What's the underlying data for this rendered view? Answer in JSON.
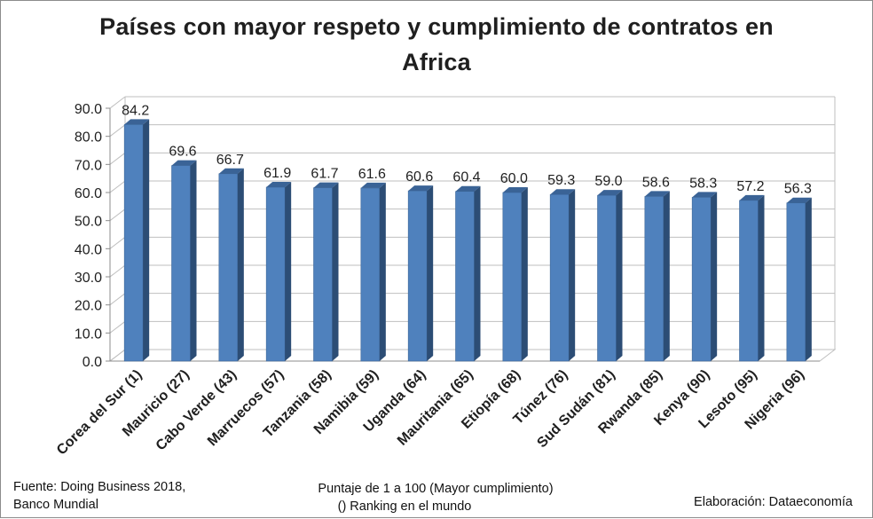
{
  "chart_data": {
    "type": "bar",
    "title": "Países con mayor respeto y cumplimiento de contratos en Africa",
    "title_lines": [
      "Países con mayor respeto y cumplimiento de contratos en",
      "Africa"
    ],
    "categories": [
      "Corea del Sur (1)",
      "Mauricio (27)",
      "Cabo Verde (43)",
      "Marruecos (57)",
      "Tanzania (58)",
      "Namibia (59)",
      "Uganda (64)",
      "Mauritania (65)",
      "Etiopía (68)",
      "Túnez (76)",
      "Sud Sudán (81)",
      "Rwanda (85)",
      "Kenya (90)",
      "Lesoto (95)",
      "Nigeria (96)"
    ],
    "values": [
      84.2,
      69.6,
      66.7,
      61.9,
      61.7,
      61.6,
      60.6,
      60.4,
      60.0,
      59.3,
      59.0,
      58.6,
      58.3,
      57.2,
      56.3
    ],
    "value_labels": [
      "84.2",
      "69.6",
      "66.7",
      "61.9",
      "61.7",
      "61.6",
      "60.6",
      "60.4",
      "60.0",
      "59.3",
      "59.0",
      "58.6",
      "58.3",
      "57.2",
      "56.3"
    ],
    "ylim": [
      0,
      90
    ],
    "yticks": [
      "0.0",
      "10.0",
      "20.0",
      "30.0",
      "40.0",
      "50.0",
      "60.0",
      "70.0",
      "80.0",
      "90.0"
    ],
    "xlabel": "",
    "ylabel": "",
    "grid": true,
    "style": "3d-column",
    "legend": "none",
    "bar_color": "#4f81bd",
    "bar_side_color": "#2c4d75",
    "bar_top_color": "#3a6396",
    "subtitle_lines": [
      "Puntaje de 1 a 100 (Mayor cumplimiento)",
      "() Ranking en el mundo"
    ],
    "source_lines": [
      "Fuente: Doing Business 2018,",
      "Banco Mundial"
    ],
    "credit": "Elaboración: Dataeconomía"
  }
}
